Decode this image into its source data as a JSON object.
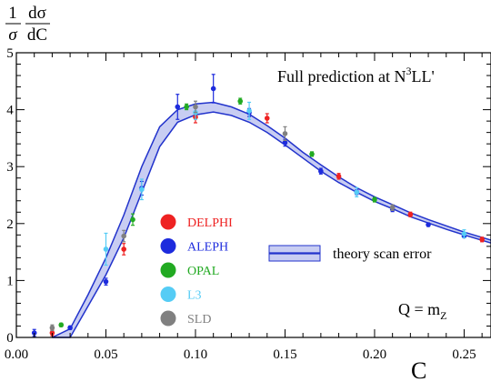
{
  "chart_data": {
    "type": "scatter",
    "y_label_fraction": {
      "num": "1",
      "den": "σ"
    },
    "y_label_deriv": {
      "num": "dσ",
      "den": "dC"
    },
    "xlabel": "C",
    "xlim": [
      0.0,
      0.265
    ],
    "ylim": [
      0,
      5
    ],
    "x_ticks": [
      0.0,
      0.05,
      0.1,
      0.15,
      0.2,
      0.25
    ],
    "x_tick_labels": [
      "0.00",
      "0.05",
      "0.10",
      "0.15",
      "0.20",
      "0.25"
    ],
    "y_ticks": [
      0,
      1,
      2,
      3,
      4,
      5
    ],
    "y_tick_labels": [
      "0",
      "1",
      "2",
      "3",
      "4",
      "5"
    ],
    "grid": false,
    "annotation_title": {
      "base": "Full prediction at N",
      "sup": "3",
      "tail": "LL'"
    },
    "annotation_q": {
      "base": "Q = m",
      "sub": "Z"
    },
    "theory_legend_label": "theory scan error",
    "legend_placement": "center-left",
    "colors": {
      "band_fill": "#c8cdf2",
      "band_line": "#2233cc",
      "DELPHI": "#ee2222",
      "ALEPH": "#1d2bdd",
      "OPAL": "#22aa22",
      "L3": "#55ccf5",
      "SLD": "#808080"
    },
    "theory": {
      "x": [
        0.02,
        0.03,
        0.04,
        0.05,
        0.06,
        0.07,
        0.08,
        0.09,
        0.1,
        0.11,
        0.12,
        0.13,
        0.14,
        0.15,
        0.16,
        0.17,
        0.18,
        0.19,
        0.2,
        0.21,
        0.22,
        0.23,
        0.24,
        0.25,
        0.265
      ],
      "lower": [
        0.0,
        0.0,
        0.55,
        1.1,
        1.75,
        2.55,
        3.35,
        3.78,
        3.91,
        3.96,
        3.9,
        3.78,
        3.6,
        3.38,
        3.15,
        2.92,
        2.72,
        2.55,
        2.39,
        2.26,
        2.12,
        2.01,
        1.9,
        1.8,
        1.66
      ],
      "upper": [
        0.0,
        0.15,
        0.75,
        1.4,
        2.15,
        3.0,
        3.7,
        4.0,
        4.1,
        4.13,
        4.05,
        3.92,
        3.72,
        3.5,
        3.25,
        3.03,
        2.82,
        2.63,
        2.47,
        2.33,
        2.19,
        2.07,
        1.96,
        1.85,
        1.71
      ]
    },
    "series": [
      {
        "name": "DELPHI",
        "points": [
          {
            "x": 0.02,
            "y": 0.08,
            "err": 0.05
          },
          {
            "x": 0.06,
            "y": 1.55,
            "err": 0.1
          },
          {
            "x": 0.1,
            "y": 3.87,
            "err": 0.1
          },
          {
            "x": 0.14,
            "y": 3.85,
            "err": 0.08
          },
          {
            "x": 0.18,
            "y": 2.83,
            "err": 0.05
          },
          {
            "x": 0.22,
            "y": 2.16,
            "err": 0.04
          },
          {
            "x": 0.26,
            "y": 1.72,
            "err": 0.04
          }
        ]
      },
      {
        "name": "ALEPH",
        "points": [
          {
            "x": 0.01,
            "y": 0.08,
            "err": 0.06
          },
          {
            "x": 0.03,
            "y": 0.17,
            "err": 0.03
          },
          {
            "x": 0.05,
            "y": 0.98,
            "err": 0.06
          },
          {
            "x": 0.07,
            "y": 2.62,
            "err": 0.12
          },
          {
            "x": 0.09,
            "y": 4.05,
            "err": 0.22
          },
          {
            "x": 0.11,
            "y": 4.37,
            "err": 0.25
          },
          {
            "x": 0.13,
            "y": 3.95,
            "err": 0.07
          },
          {
            "x": 0.15,
            "y": 3.42,
            "err": 0.06
          },
          {
            "x": 0.17,
            "y": 2.92,
            "err": 0.05
          },
          {
            "x": 0.19,
            "y": 2.55,
            "err": 0.04
          },
          {
            "x": 0.21,
            "y": 2.25,
            "err": 0.04
          },
          {
            "x": 0.23,
            "y": 1.98,
            "err": 0.03
          },
          {
            "x": 0.25,
            "y": 1.78,
            "err": 0.03
          }
        ]
      },
      {
        "name": "OPAL",
        "points": [
          {
            "x": 0.025,
            "y": 0.22,
            "err": 0.03
          },
          {
            "x": 0.065,
            "y": 2.07,
            "err": 0.1
          },
          {
            "x": 0.095,
            "y": 4.05,
            "err": 0.05
          },
          {
            "x": 0.125,
            "y": 4.15,
            "err": 0.05
          },
          {
            "x": 0.165,
            "y": 3.22,
            "err": 0.04
          },
          {
            "x": 0.2,
            "y": 2.42,
            "err": 0.04
          }
        ]
      },
      {
        "name": "L3",
        "points": [
          {
            "x": 0.05,
            "y": 1.55,
            "err": 0.28
          },
          {
            "x": 0.07,
            "y": 2.6,
            "err": 0.18
          },
          {
            "x": 0.1,
            "y": 3.95,
            "err": 0.12
          },
          {
            "x": 0.13,
            "y": 3.98,
            "err": 0.15
          },
          {
            "x": 0.19,
            "y": 2.55,
            "err": 0.08
          },
          {
            "x": 0.25,
            "y": 1.82,
            "err": 0.07
          }
        ]
      },
      {
        "name": "SLD",
        "points": [
          {
            "x": 0.02,
            "y": 0.17,
            "err": 0.05
          },
          {
            "x": 0.06,
            "y": 1.78,
            "err": 0.1
          },
          {
            "x": 0.1,
            "y": 4.05,
            "err": 0.1
          },
          {
            "x": 0.15,
            "y": 3.58,
            "err": 0.12
          },
          {
            "x": 0.21,
            "y": 2.28,
            "err": 0.05
          }
        ]
      }
    ]
  }
}
